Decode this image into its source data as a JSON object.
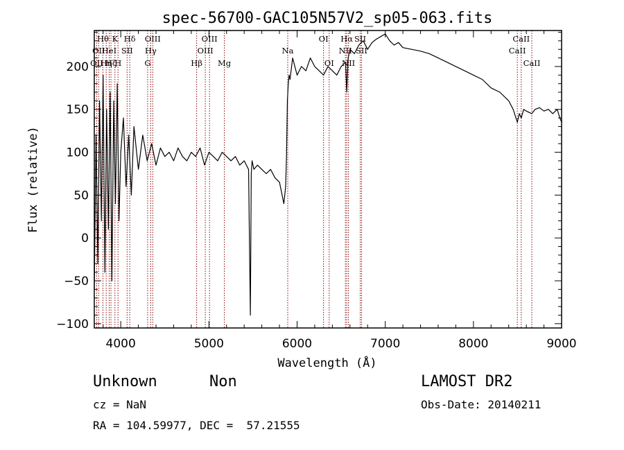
{
  "chart_data": {
    "type": "line",
    "title": "spec-56700-GAC105N57V2_sp05-063.fits",
    "xlabel": "Wavelength (Å)",
    "ylabel": "Flux (relative)",
    "xlim": [
      3700,
      9000
    ],
    "ylim": [
      -105,
      242
    ],
    "x_ticks": [
      4000,
      5000,
      6000,
      7000,
      8000,
      9000
    ],
    "y_ticks": [
      -100,
      -50,
      0,
      50,
      100,
      150,
      200
    ],
    "grid": false,
    "series": [
      {
        "x": [
          3700,
          3720,
          3740,
          3760,
          3780,
          3800,
          3820,
          3840,
          3860,
          3880,
          3900,
          3920,
          3940,
          3960,
          3980,
          4000,
          4030,
          4060,
          4090,
          4120,
          4150,
          4200,
          4250,
          4300,
          4350,
          4400,
          4450,
          4500,
          4550,
          4600,
          4650,
          4700,
          4750,
          4800,
          4850,
          4900,
          4950,
          5000,
          5050,
          5100,
          5150,
          5200,
          5250,
          5300,
          5350,
          5400,
          5450,
          5470,
          5480,
          5490,
          5510,
          5550,
          5600,
          5650,
          5700,
          5750,
          5800,
          5830,
          5850,
          5870,
          5880,
          5890,
          5900,
          5910,
          5920,
          5950,
          6000,
          6050,
          6100,
          6150,
          6200,
          6250,
          6300,
          6350,
          6400,
          6450,
          6500,
          6550,
          6563,
          6580,
          6600,
          6650,
          6700,
          6750,
          6800,
          6850,
          6900,
          6950,
          7000,
          7050,
          7100,
          7150,
          7200,
          7300,
          7400,
          7500,
          7600,
          7700,
          7800,
          7900,
          8000,
          8100,
          8200,
          8300,
          8400,
          8450,
          8498,
          8520,
          8542,
          8570,
          8600,
          8662,
          8700,
          8750,
          8800,
          8850,
          8900,
          8950,
          8980,
          9000
        ],
        "y": [
          -60,
          120,
          -30,
          160,
          20,
          190,
          -40,
          150,
          10,
          170,
          -50,
          160,
          40,
          180,
          20,
          100,
          140,
          60,
          120,
          50,
          130,
          80,
          120,
          90,
          110,
          85,
          105,
          95,
          100,
          90,
          105,
          95,
          90,
          100,
          95,
          105,
          85,
          100,
          95,
          90,
          100,
          95,
          90,
          95,
          85,
          90,
          80,
          -90,
          75,
          90,
          80,
          85,
          80,
          75,
          80,
          70,
          65,
          50,
          40,
          60,
          95,
          160,
          180,
          190,
          185,
          210,
          190,
          200,
          195,
          210,
          200,
          195,
          190,
          200,
          195,
          190,
          200,
          205,
          170,
          210,
          220,
          215,
          225,
          230,
          220,
          228,
          232,
          235,
          238,
          230,
          225,
          228,
          222,
          220,
          218,
          215,
          210,
          205,
          200,
          195,
          190,
          185,
          175,
          170,
          160,
          150,
          135,
          145,
          140,
          150,
          148,
          145,
          150,
          152,
          148,
          150,
          145,
          150,
          140,
          135
        ]
      }
    ],
    "emission_lines": [
      {
        "x": 3727,
        "label": "OII",
        "row": 2
      },
      {
        "x": 3750,
        "label": "OII",
        "row": 1
      },
      {
        "x": 3798,
        "label": "Hθ",
        "row": 0
      },
      {
        "x": 3835,
        "label": "Hη",
        "row": 2
      },
      {
        "x": 3869,
        "label": "HeI",
        "row": 1
      },
      {
        "x": 3889,
        "label": "Hζ",
        "row": 2
      },
      {
        "x": 3934,
        "label": "K",
        "row": 0
      },
      {
        "x": 3969,
        "label": "H",
        "row": 2
      },
      {
        "x": 4072,
        "label": "SII",
        "row": 1
      },
      {
        "x": 4102,
        "label": "Hδ",
        "row": 0
      },
      {
        "x": 4305,
        "label": "G",
        "row": 2
      },
      {
        "x": 4340,
        "label": "Hγ",
        "row": 1
      },
      {
        "x": 4363,
        "label": "OIII",
        "row": 0
      },
      {
        "x": 4861,
        "label": "Hβ",
        "row": 2
      },
      {
        "x": 4959,
        "label": "OIII",
        "row": 1
      },
      {
        "x": 5007,
        "label": "OIII",
        "row": 0
      },
      {
        "x": 5175,
        "label": "Mg",
        "row": 2
      },
      {
        "x": 5894,
        "label": "Na",
        "row": 1
      },
      {
        "x": 6300,
        "label": "OI",
        "row": 0
      },
      {
        "x": 6364,
        "label": "OI",
        "row": 2
      },
      {
        "x": 6548,
        "label": "NII",
        "row": 1
      },
      {
        "x": 6563,
        "label": "Hα",
        "row": 0
      },
      {
        "x": 6583,
        "label": "NII",
        "row": 2
      },
      {
        "x": 6716,
        "label": "SII",
        "row": 0
      },
      {
        "x": 6731,
        "label": "SII",
        "row": 1
      },
      {
        "x": 8498,
        "label": "CaII",
        "row": 1
      },
      {
        "x": 8542,
        "label": "CaII",
        "row": 0
      },
      {
        "x": 8662,
        "label": "CaII",
        "row": 2
      }
    ]
  },
  "info": {
    "class": "Unknown",
    "subclass": "Non",
    "cz": "cz = NaN",
    "radec": "RA = 104.59977, DEC =  57.21555",
    "survey": "LAMOST DR2",
    "obs_date": "Obs-Date: 20140211"
  },
  "colors": {
    "spectrum": "#000000",
    "marker_line": "#8b0000",
    "background": "#ffffff"
  }
}
